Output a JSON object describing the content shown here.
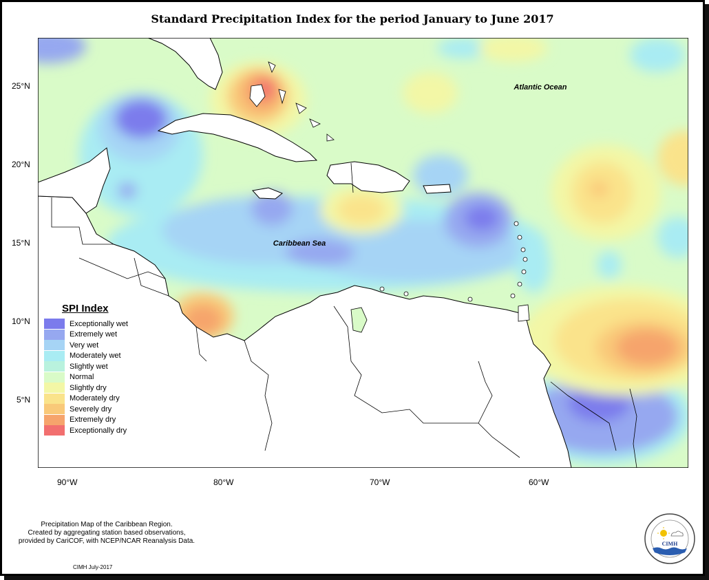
{
  "title": "Standard Precipitation Index for the period January to June 2017",
  "map": {
    "region_labels": {
      "atlantic": "Atlantic Ocean",
      "caribbean": "Caribbean Sea"
    },
    "lat_ticks": [
      "25°N",
      "20°N",
      "15°N",
      "10°N",
      "5°N"
    ],
    "lon_ticks": [
      "90°W",
      "80°W",
      "70°W",
      "60°W"
    ]
  },
  "legend": {
    "title": "SPI Index",
    "items": [
      {
        "label": "Exceptionally wet",
        "color": "#7b7bec"
      },
      {
        "label": "Extremely wet",
        "color": "#96a8f0"
      },
      {
        "label": "Very wet",
        "color": "#a6d4f5"
      },
      {
        "label": "Moderately wet",
        "color": "#a9ecf3"
      },
      {
        "label": "Slightly wet",
        "color": "#b9f2de"
      },
      {
        "label": "Normal",
        "color": "#d9fbc8"
      },
      {
        "label": "Slightly dry",
        "color": "#f3f7a6"
      },
      {
        "label": "Moderately dry",
        "color": "#fae38b"
      },
      {
        "label": "Severely dry",
        "color": "#f9c979"
      },
      {
        "label": "Extremely dry",
        "color": "#f6a46c"
      },
      {
        "label": "Exceptionally dry",
        "color": "#f26f6f"
      }
    ]
  },
  "footnote": {
    "line1": "Precipitation Map of the Caribbean Region.",
    "line2": "Created by aggregating station based observations,",
    "line3": "provided by CariCOF, with NCEP/NCAR Reanalysis Data."
  },
  "credit": "CIMH July-2017",
  "logo": {
    "text": "CIMH",
    "icon": "cimh-logo-icon"
  }
}
